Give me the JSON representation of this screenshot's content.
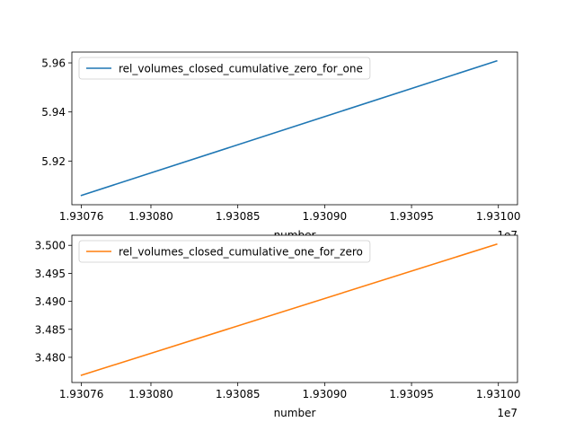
{
  "chart_data": [
    {
      "type": "line",
      "xlabel": "number",
      "x_offset_label": "1e7",
      "xlim": [
        19307545,
        19310110
      ],
      "ylim": [
        5.9022,
        5.9644
      ],
      "xticks": [
        19307600,
        19308000,
        19308500,
        19309000,
        19309500,
        19310000
      ],
      "xtick_labels": [
        "1.93076",
        "1.93080",
        "1.93085",
        "1.93090",
        "1.93095",
        "1.93100"
      ],
      "yticks": [
        5.92,
        5.94,
        5.96
      ],
      "ytick_labels": [
        "5.92",
        "5.94",
        "5.96"
      ],
      "legend_position": "upper-left",
      "series": [
        {
          "name": "rel_volumes_closed_cumulative_zero_for_one",
          "color": "#1f77b4",
          "x": [
            19307600,
            19309990
          ],
          "y": [
            5.906,
            5.9608
          ]
        }
      ]
    },
    {
      "type": "line",
      "xlabel": "number",
      "x_offset_label": "1e7",
      "xlim": [
        19307545,
        19310110
      ],
      "ylim": [
        3.4755,
        3.5018
      ],
      "xticks": [
        19307600,
        19308000,
        19308500,
        19309000,
        19309500,
        19310000
      ],
      "xtick_labels": [
        "1.93076",
        "1.93080",
        "1.93085",
        "1.93090",
        "1.93095",
        "1.93100"
      ],
      "yticks": [
        3.48,
        3.485,
        3.49,
        3.495,
        3.5
      ],
      "ytick_labels": [
        "3.480",
        "3.485",
        "3.490",
        "3.495",
        "3.500"
      ],
      "legend_position": "upper-left",
      "series": [
        {
          "name": "rel_volumes_closed_cumulative_one_for_zero",
          "color": "#ff7f0e",
          "x": [
            19307600,
            19309990
          ],
          "y": [
            3.4768,
            3.5002
          ]
        }
      ]
    }
  ]
}
